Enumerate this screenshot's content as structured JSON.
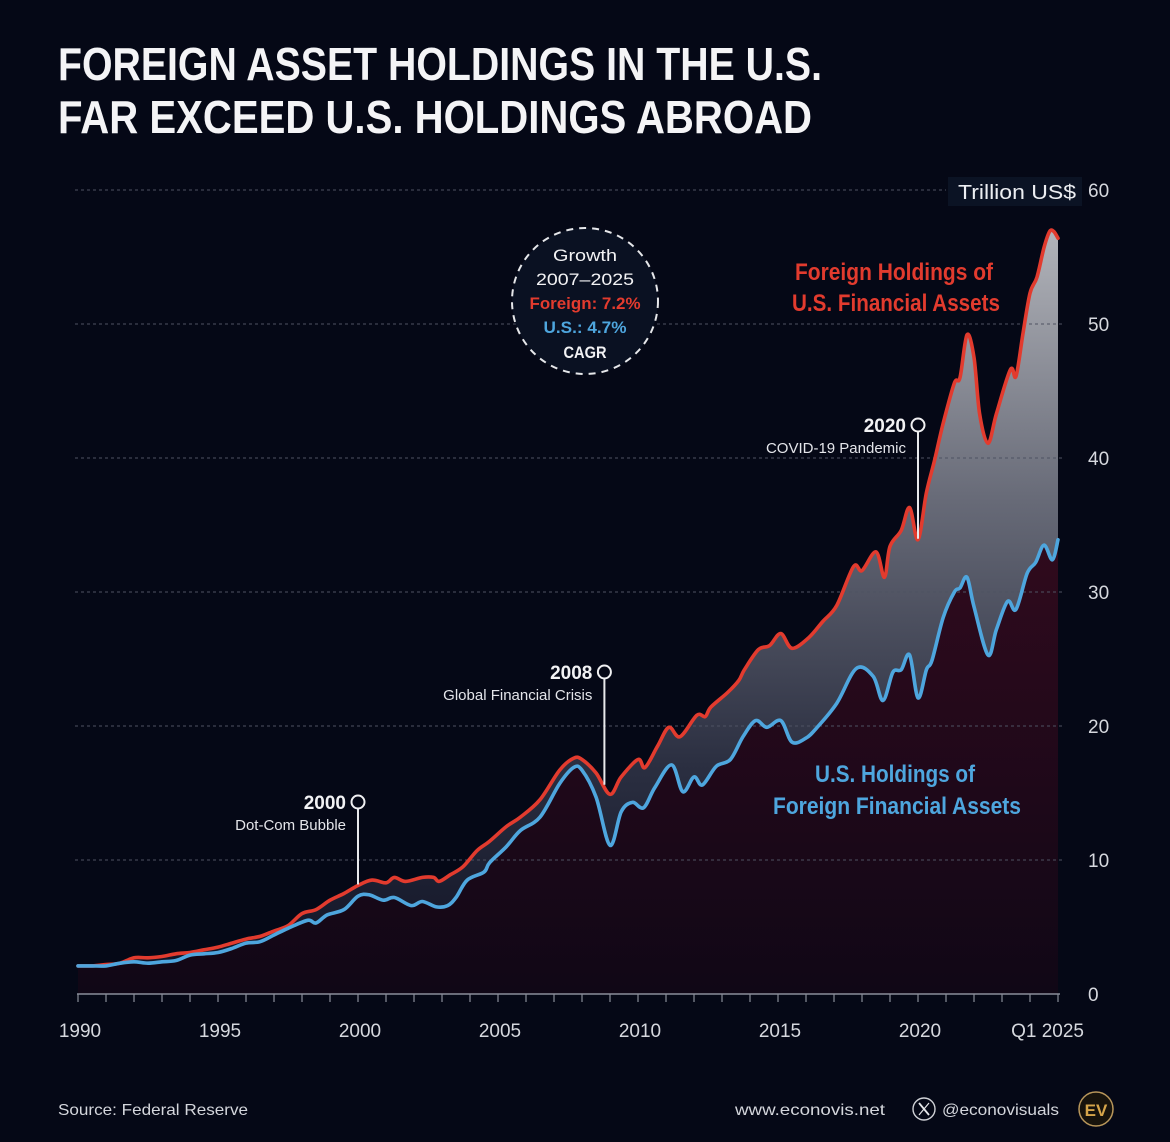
{
  "chart_data": {
    "type": "area",
    "title_lines": [
      "FOREIGN ASSET HOLDINGS IN THE U.S.",
      "FAR EXCEED U.S. HOLDINGS ABROAD"
    ],
    "xlabel": "",
    "ylabel": "Trillion US$",
    "xlim": [
      1990,
      2025
    ],
    "ylim": [
      0,
      60
    ],
    "grid": true,
    "y_ticks": [
      0,
      10,
      20,
      30,
      40,
      50,
      60
    ],
    "x_ticks": [
      {
        "value": 1990,
        "label": "1990"
      },
      {
        "value": 1995,
        "label": "1995"
      },
      {
        "value": 2000,
        "label": "2000"
      },
      {
        "value": 2005,
        "label": "2005"
      },
      {
        "value": 2010,
        "label": "2010"
      },
      {
        "value": 2015,
        "label": "2015"
      },
      {
        "value": 2020,
        "label": "2020"
      },
      {
        "value": 2025,
        "label": "Q1 2025"
      }
    ],
    "series": [
      {
        "label_lines": [
          "Foreign Holdings of",
          "U.S. Financial Assets"
        ],
        "color": "#e23b2e",
        "x": [
          1990.0,
          1990.5,
          1991.0,
          1991.5,
          1992.0,
          1992.5,
          1993.0,
          1993.5,
          1994.0,
          1994.5,
          1995.0,
          1995.5,
          1996.0,
          1996.5,
          1997.0,
          1997.5,
          1998.0,
          1998.5,
          1999.0,
          1999.5,
          2000.0,
          2000.5,
          2001.0,
          2001.3,
          2001.7,
          2002.3,
          2002.7,
          2002.9,
          2003.3,
          2003.75,
          2004.25,
          2004.7,
          2005.3,
          2005.8,
          2006.5,
          2007.2,
          2007.7,
          2008.0,
          2008.5,
          2009.0,
          2009.4,
          2010.0,
          2010.25,
          2010.7,
          2011.1,
          2011.5,
          2012.1,
          2012.4,
          2012.6,
          2013.2,
          2013.6,
          2013.8,
          2014.3,
          2014.7,
          2015.1,
          2015.5,
          2016.1,
          2016.6,
          2017.1,
          2017.7,
          2018.0,
          2018.5,
          2018.8,
          2019.0,
          2019.4,
          2019.7,
          2020.0,
          2020.3,
          2020.6,
          2020.9,
          2021.3,
          2021.5,
          2021.75,
          2022.0,
          2022.2,
          2022.5,
          2022.8,
          2023.3,
          2023.5,
          2023.75,
          2024.0,
          2024.25,
          2024.5,
          2024.7,
          2024.85,
          2025.0
        ],
        "y": [
          2.1,
          2.1,
          2.2,
          2.3,
          2.7,
          2.7,
          2.8,
          3.0,
          3.1,
          3.3,
          3.5,
          3.8,
          4.1,
          4.3,
          4.7,
          5.1,
          6.0,
          6.3,
          7.0,
          7.5,
          8.1,
          8.5,
          8.3,
          8.7,
          8.4,
          8.7,
          8.7,
          8.4,
          8.9,
          9.5,
          10.7,
          11.4,
          12.5,
          13.2,
          14.5,
          16.7,
          17.6,
          17.5,
          16.5,
          14.9,
          16.2,
          17.5,
          16.9,
          18.5,
          19.9,
          19.2,
          20.8,
          20.7,
          21.4,
          22.5,
          23.4,
          24.2,
          25.7,
          26.0,
          26.9,
          25.8,
          26.6,
          27.8,
          29.0,
          31.9,
          31.6,
          33.0,
          31.1,
          33.4,
          34.6,
          36.3,
          33.9,
          37.4,
          39.9,
          42.6,
          45.6,
          46.0,
          49.2,
          47.5,
          43.3,
          41.1,
          43.3,
          46.6,
          46.1,
          49.3,
          52.3,
          53.5,
          55.7,
          56.9,
          56.9,
          56.4
        ]
      },
      {
        "label_lines": [
          "U.S. Holdings of",
          "Foreign Financial Assets"
        ],
        "color": "#4ea6de",
        "x": [
          1990.0,
          1990.5,
          1991.0,
          1991.5,
          1992.0,
          1992.5,
          1993.0,
          1993.5,
          1994.0,
          1994.5,
          1995.0,
          1995.5,
          1996.0,
          1996.5,
          1997.0,
          1997.5,
          1998.2,
          1998.5,
          1998.9,
          1999.5,
          2000.0,
          2000.4,
          2000.9,
          2001.3,
          2001.9,
          2002.3,
          2002.8,
          2003.2,
          2003.5,
          2003.9,
          2004.5,
          2004.7,
          2005.3,
          2005.8,
          2006.5,
          2007.2,
          2007.7,
          2008.0,
          2008.5,
          2009.0,
          2009.4,
          2009.8,
          2010.2,
          2010.6,
          2011.2,
          2011.6,
          2012.0,
          2012.3,
          2012.8,
          2013.3,
          2013.75,
          2014.2,
          2014.6,
          2015.1,
          2015.5,
          2016.0,
          2016.4,
          2017.1,
          2017.8,
          2018.4,
          2018.75,
          2019.1,
          2019.4,
          2019.7,
          2020.0,
          2020.3,
          2020.5,
          2020.9,
          2021.3,
          2021.5,
          2021.75,
          2022.0,
          2022.5,
          2022.8,
          2023.2,
          2023.5,
          2023.9,
          2024.2,
          2024.5,
          2024.8,
          2025.0
        ],
        "y": [
          2.1,
          2.1,
          2.1,
          2.3,
          2.4,
          2.3,
          2.4,
          2.5,
          2.9,
          3.0,
          3.1,
          3.4,
          3.8,
          3.9,
          4.4,
          4.9,
          5.5,
          5.3,
          5.9,
          6.3,
          7.3,
          7.4,
          7.0,
          7.2,
          6.6,
          6.9,
          6.5,
          6.6,
          7.2,
          8.5,
          9.1,
          9.8,
          11.0,
          12.2,
          13.2,
          15.7,
          16.9,
          16.7,
          14.7,
          11.1,
          13.6,
          14.3,
          13.9,
          15.4,
          17.1,
          15.1,
          16.2,
          15.6,
          17.0,
          17.5,
          19.2,
          20.4,
          19.9,
          20.4,
          18.8,
          19.1,
          19.9,
          21.7,
          24.3,
          23.7,
          21.9,
          24.0,
          24.2,
          25.3,
          22.1,
          24.2,
          24.9,
          28.1,
          30.0,
          30.3,
          31.1,
          28.9,
          25.3,
          27.2,
          29.3,
          28.7,
          31.4,
          32.2,
          33.5,
          32.4,
          33.9
        ]
      }
    ],
    "annotations": [
      {
        "x": 2000.0,
        "year": "2000",
        "label": "Dot-Com Bubble"
      },
      {
        "x": 2008.8,
        "year": "2008",
        "label": "Global Financial Crisis"
      },
      {
        "x": 2020.0,
        "year": "2020",
        "label": "COVID-19 Pandemic"
      }
    ],
    "callout": {
      "heading": "Growth",
      "period": "2007–2025",
      "foreign": "Foreign: 7.2%",
      "us": "U.S.: 4.7%",
      "metric": "CAGR"
    }
  },
  "footer": {
    "source": "Source: Federal Reserve",
    "website": "www.econovis.net",
    "handle": "@econovisuals",
    "logo_text": "EV"
  },
  "icons": {
    "social": "x-logo-icon",
    "brand": "ev-logo-icon",
    "annotation_marker": "circle-marker-icon"
  },
  "colors": {
    "background": "#050816",
    "foreign": "#e23b2e",
    "us": "#4ea6de",
    "brand_gold": "#d6a54a",
    "text": "#f2f2f4"
  }
}
